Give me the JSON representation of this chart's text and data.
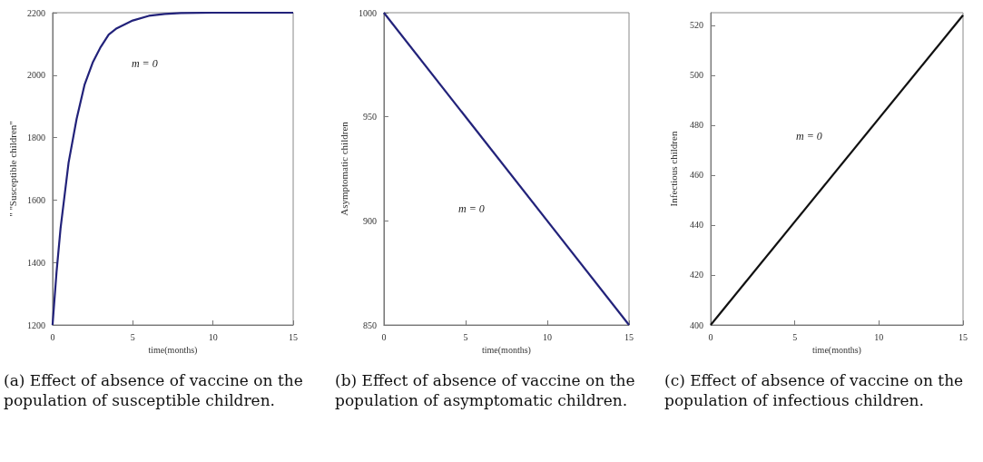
{
  "chart_data": [
    {
      "type": "line",
      "title": "(a) Effect of absence of vaccine on the population of susceptible children.",
      "xlabel": "time(months)",
      "ylabel": "\" \"Susceptible children\"",
      "x": [
        0,
        0.25,
        0.5,
        1,
        1.5,
        2,
        2.5,
        3,
        3.5,
        4,
        5,
        6,
        7,
        8,
        10,
        12,
        15
      ],
      "series": [
        {
          "color": "#22227a",
          "values": [
            1200,
            1370,
            1510,
            1720,
            1860,
            1970,
            2040,
            2090,
            2130,
            2150,
            2175,
            2190,
            2196,
            2199,
            2200,
            2200,
            2200
          ]
        }
      ],
      "xlim": [
        0,
        15
      ],
      "xticks": [
        0,
        5,
        10,
        15
      ],
      "ylim": [
        1200,
        2200
      ],
      "yticks": [
        1200,
        1400,
        1600,
        1800,
        2000,
        2200
      ],
      "grid": false,
      "marker": "none",
      "line_style": "solid",
      "annotations": [
        "m = 0"
      ]
    },
    {
      "type": "line",
      "title": "(b) Effect of absence of vaccine on the population of asymptomatic children.",
      "xlabel": "time(months)",
      "ylabel": "Asymptomatic children",
      "x": [
        0,
        15
      ],
      "series": [
        {
          "color": "#22227a",
          "values": [
            1000,
            850
          ]
        }
      ],
      "xlim": [
        0,
        15
      ],
      "xticks": [
        0,
        5,
        10,
        15
      ],
      "ylim": [
        850,
        1000
      ],
      "yticks": [
        850,
        900,
        950,
        1000
      ],
      "grid": false,
      "marker": "none",
      "line_style": "solid",
      "annotations": [
        "m = 0"
      ]
    },
    {
      "type": "line",
      "title": "(c) Effect of absence of vaccine on the population of infectious children.",
      "xlabel": "time(months)",
      "ylabel": "Infectious children",
      "x": [
        0,
        15
      ],
      "series": [
        {
          "color": "#111111",
          "values": [
            400,
            524
          ]
        }
      ],
      "xlim": [
        0,
        15
      ],
      "xticks": [
        0,
        5,
        10,
        15
      ],
      "ylim": [
        400,
        525
      ],
      "yticks": [
        400,
        420,
        440,
        460,
        480,
        500,
        520
      ],
      "grid": false,
      "marker": "none",
      "line_style": "solid",
      "annotations": [
        "m = 0"
      ]
    }
  ]
}
